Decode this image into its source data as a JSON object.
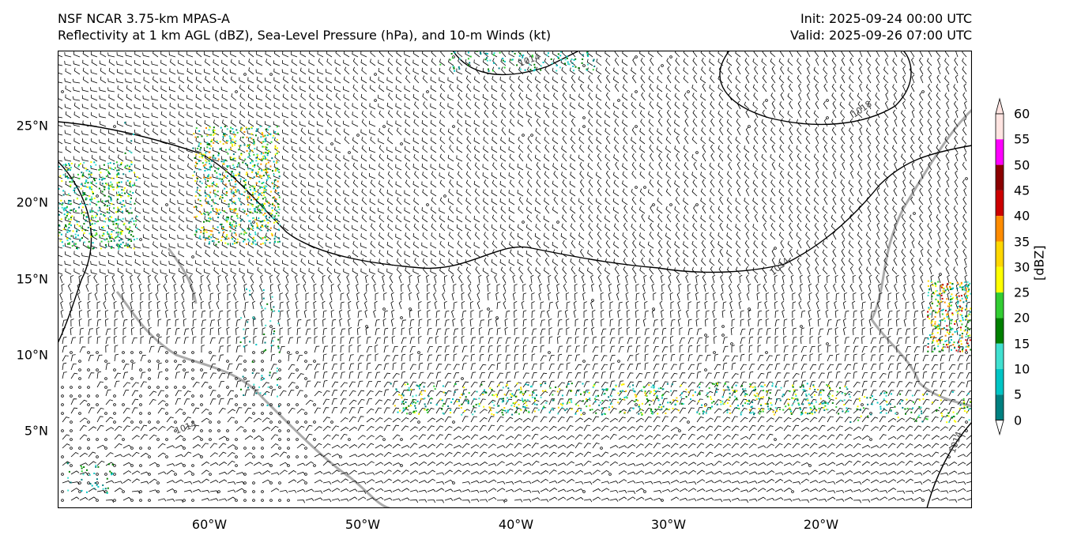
{
  "title": {
    "left_line1": "NSF NCAR 3.75-km MPAS-A",
    "left_line2": "Reflectivity at 1 km AGL (dBZ), Sea-Level Pressure (hPa), and 10-m Winds (kt)",
    "right_line1": "Init: 2025-09-24 00:00 UTC",
    "right_line2": "Valid: 2025-09-26 07:00 UTC"
  },
  "axes": {
    "y_labels": [
      "25°N",
      "20°N",
      "15°N",
      "10°N",
      "5°N"
    ],
    "x_labels": [
      "60°W",
      "50°W",
      "40°W",
      "30°W",
      "20°W"
    ]
  },
  "isobar_labels": [
    "1014",
    "1018",
    "1014",
    "1014",
    "1014"
  ],
  "colorbar": {
    "ticks": [
      "0",
      "5",
      "10",
      "15",
      "20",
      "25",
      "30",
      "35",
      "40",
      "45",
      "50",
      "55",
      "60"
    ],
    "unit": "[dBZ]",
    "colors": [
      "#ffffff",
      "#008080",
      "#00c5c5",
      "#40e0d0",
      "#008000",
      "#32cd32",
      "#ffff00",
      "#ffd700",
      "#ff8c00",
      "#cc0000",
      "#8b0000",
      "#ff00ff",
      "#ffe4e1"
    ]
  },
  "colors": {
    "coast": "#aaaaaa",
    "barb": "#000000",
    "isobar": "#000000"
  }
}
